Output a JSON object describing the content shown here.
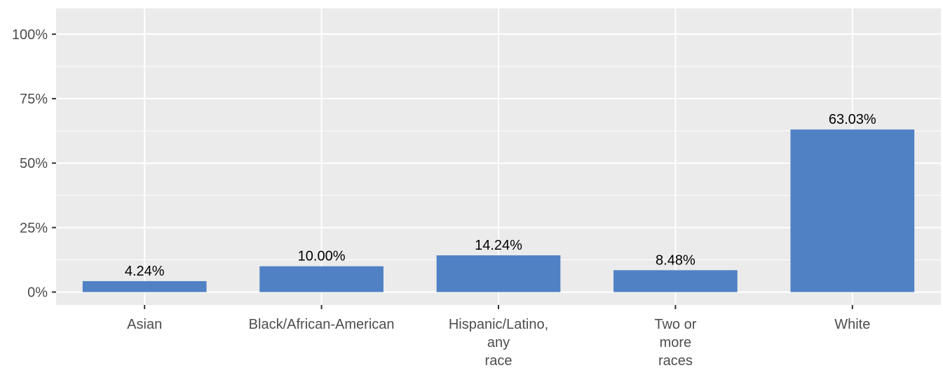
{
  "chart_data": {
    "type": "bar",
    "categories": [
      [
        "Asian"
      ],
      [
        "Black/African-American"
      ],
      [
        "Hispanic/Latino,",
        "any",
        "race"
      ],
      [
        "Two or",
        "more",
        "races"
      ],
      [
        "White"
      ]
    ],
    "values": [
      4.24,
      10.0,
      14.24,
      8.48,
      63.03
    ],
    "data_labels": [
      "4.24%",
      "10.00%",
      "14.24%",
      "8.48%",
      "63.03%"
    ],
    "y_ticks": [
      0,
      25,
      50,
      75,
      100
    ],
    "y_tick_labels": [
      "0%",
      "25%",
      "50%",
      "75%",
      "100%"
    ],
    "ylim": [
      -5,
      110
    ],
    "title": "",
    "xlabel": "",
    "ylabel": "",
    "grid": true,
    "legend": "none",
    "colors": {
      "bar": "#4f81c4",
      "panel_background": "#ebebeb",
      "grid_major": "#ffffff",
      "tick_text": "#4d4d4d",
      "label_text": "#000000"
    }
  }
}
